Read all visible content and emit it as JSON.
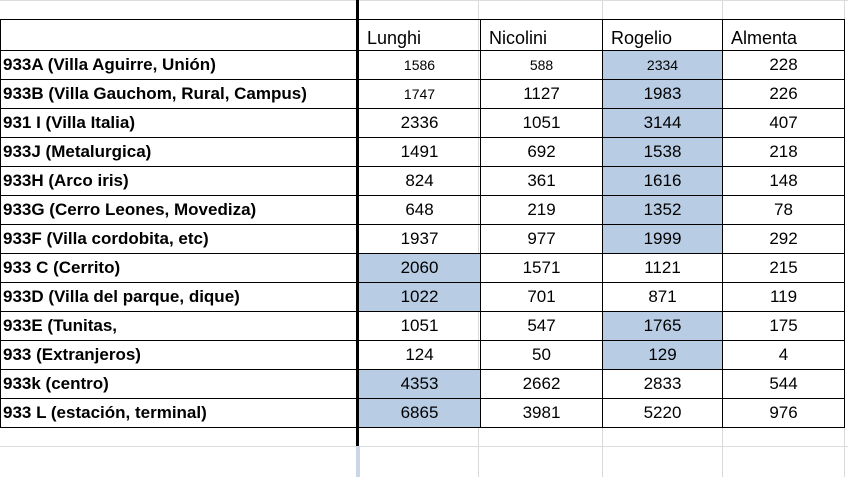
{
  "headers": [
    "",
    "Lunghi",
    "Nicolini",
    "Rogelio",
    "Almenta"
  ],
  "rows": [
    {
      "name": "933A (Villa Aguirre, Unión)",
      "values": [
        "1586",
        "588",
        "2334",
        "228"
      ],
      "small": [
        true,
        true,
        true,
        false
      ],
      "highlight": [
        false,
        false,
        true,
        false
      ]
    },
    {
      "name": "933B (Villa Gauchom, Rural, Campus)",
      "values": [
        "1747",
        "1127",
        "1983",
        "226"
      ],
      "small": [
        true,
        false,
        false,
        false
      ],
      "highlight": [
        false,
        false,
        true,
        false
      ]
    },
    {
      "name": "931 I (Villa Italia)",
      "values": [
        "2336",
        "1051",
        "3144",
        "407"
      ],
      "small": [
        false,
        false,
        false,
        false
      ],
      "highlight": [
        false,
        false,
        true,
        false
      ]
    },
    {
      "name": "933J (Metalurgica)",
      "values": [
        "1491",
        "692",
        "1538",
        "218"
      ],
      "small": [
        false,
        false,
        false,
        false
      ],
      "highlight": [
        false,
        false,
        true,
        false
      ]
    },
    {
      "name": "933H (Arco iris)",
      "values": [
        "824",
        "361",
        "1616",
        "148"
      ],
      "small": [
        false,
        false,
        false,
        false
      ],
      "highlight": [
        false,
        false,
        true,
        false
      ]
    },
    {
      "name": "933G (Cerro Leones, Movediza)",
      "values": [
        "648",
        "219",
        "1352",
        "78"
      ],
      "small": [
        false,
        false,
        false,
        false
      ],
      "highlight": [
        false,
        false,
        true,
        false
      ]
    },
    {
      "name": "933F (Villa cordobita, etc)",
      "values": [
        "1937",
        "977",
        "1999",
        "292"
      ],
      "small": [
        false,
        false,
        false,
        false
      ],
      "highlight": [
        false,
        false,
        true,
        false
      ]
    },
    {
      "name": "933 C (Cerrito)",
      "values": [
        "2060",
        "1571",
        "1121",
        "215"
      ],
      "small": [
        false,
        false,
        false,
        false
      ],
      "highlight": [
        true,
        false,
        false,
        false
      ]
    },
    {
      "name": "933D (Villa del parque, dique)",
      "values": [
        "1022",
        "701",
        "871",
        "119"
      ],
      "small": [
        false,
        false,
        false,
        false
      ],
      "highlight": [
        true,
        false,
        false,
        false
      ]
    },
    {
      "name": "933E (Tunitas,",
      "values": [
        "1051",
        "547",
        "1765",
        "175"
      ],
      "small": [
        false,
        false,
        false,
        false
      ],
      "highlight": [
        false,
        false,
        true,
        false
      ]
    },
    {
      "name": "933 (Extranjeros)",
      "values": [
        "124",
        "50",
        "129",
        "4"
      ],
      "small": [
        false,
        false,
        false,
        false
      ],
      "highlight": [
        false,
        false,
        true,
        false
      ]
    },
    {
      "name": "933k (centro)",
      "values": [
        "4353",
        "2662",
        "2833",
        "544"
      ],
      "small": [
        false,
        false,
        false,
        false
      ],
      "highlight": [
        true,
        false,
        false,
        false
      ]
    },
    {
      "name": "933 L (estación, terminal)",
      "values": [
        "6865",
        "3981",
        "5220",
        "976"
      ],
      "small": [
        false,
        false,
        false,
        false
      ],
      "highlight": [
        true,
        false,
        false,
        false
      ]
    }
  ],
  "colors": {
    "highlight": "#b8cce4",
    "gridline": "#d9d9d9",
    "border": "#000000"
  }
}
